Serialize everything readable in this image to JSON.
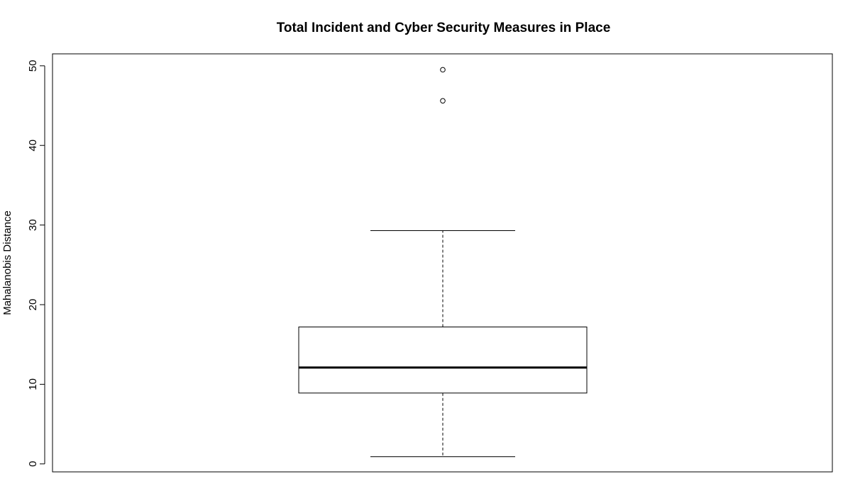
{
  "chart_data": {
    "type": "boxplot",
    "title": "Total Incident and Cyber Security Measures in Place",
    "xlabel": "",
    "ylabel": "Mahalanobis Distance",
    "ylim": [
      -1,
      51.5
    ],
    "yticks": [
      0,
      10,
      20,
      30,
      40,
      50
    ],
    "ytick_labels": [
      "0",
      "10",
      "20",
      "30",
      "40",
      "50"
    ],
    "grid": false,
    "box": {
      "whisker_low": 0.9,
      "q1": 8.9,
      "median": 12.1,
      "q3": 17.2,
      "whisker_high": 29.3,
      "outliers": [
        45.6,
        49.5
      ]
    }
  }
}
